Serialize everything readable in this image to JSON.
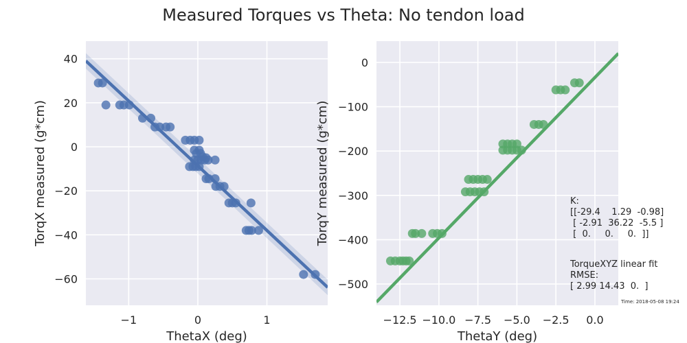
{
  "figure": {
    "title": "Measured Torques vs Theta: No tendon load",
    "annotation": {
      "lines": [
        "K:",
        "[[-29.4    1.29  -0.98]",
        " [ -2.91  36.22  -5.5 ]",
        " [  0.     0.     0.  ]]",
        "",
        "TorqueXYZ linear fit",
        "RMSE:",
        "[ 2.99 14.43  0.  ]"
      ]
    },
    "timestamp": "Time: 2018-05-08 19:24"
  },
  "chart_data": [
    {
      "type": "scatter",
      "xlabel": "ThetaX (deg)",
      "ylabel": "TorqX measured (g*cm)",
      "xlim": [
        -1.62,
        1.88
      ],
      "ylim": [
        -72,
        48
      ],
      "xticks": [
        -1,
        0,
        1
      ],
      "xtick_labels": [
        "−1",
        "0",
        "1"
      ],
      "yticks": [
        40,
        20,
        0,
        -20,
        -40,
        -60
      ],
      "ytick_labels": [
        "40",
        "20",
        "0",
        "−20",
        "−40",
        "−60"
      ],
      "color": "#4c72b0",
      "fit": {
        "slope": -29.4,
        "intercept": -8.6,
        "ci_halfwidth": 2.2
      },
      "points": [
        [
          -1.44,
          29
        ],
        [
          -1.38,
          29
        ],
        [
          -1.33,
          19
        ],
        [
          -1.13,
          19
        ],
        [
          -1.07,
          19
        ],
        [
          -0.99,
          19
        ],
        [
          -0.8,
          13
        ],
        [
          -0.68,
          13
        ],
        [
          -0.62,
          9
        ],
        [
          -0.55,
          9
        ],
        [
          -0.46,
          9
        ],
        [
          -0.4,
          9
        ],
        [
          -0.18,
          3
        ],
        [
          -0.11,
          3
        ],
        [
          -0.05,
          3
        ],
        [
          0.02,
          3
        ],
        [
          -0.05,
          -1.5
        ],
        [
          -0.02,
          -3
        ],
        [
          0.02,
          -1.5
        ],
        [
          0.04,
          -3
        ],
        [
          0.07,
          -4.5
        ],
        [
          0.12,
          -5
        ],
        [
          -0.05,
          -6
        ],
        [
          0.0,
          -6
        ],
        [
          0.05,
          -6
        ],
        [
          0.1,
          -6
        ],
        [
          0.15,
          -6
        ],
        [
          0.25,
          -6
        ],
        [
          -0.12,
          -9
        ],
        [
          -0.07,
          -9
        ],
        [
          -0.03,
          -9
        ],
        [
          0.02,
          -9
        ],
        [
          0.12,
          -14.5
        ],
        [
          0.16,
          -14.5
        ],
        [
          0.25,
          -14.5
        ],
        [
          0.26,
          -18
        ],
        [
          0.32,
          -18
        ],
        [
          0.38,
          -18
        ],
        [
          0.45,
          -25.5
        ],
        [
          0.5,
          -25.5
        ],
        [
          0.55,
          -25.5
        ],
        [
          0.77,
          -25.5
        ],
        [
          0.7,
          -38
        ],
        [
          0.74,
          -38
        ],
        [
          0.78,
          -38
        ],
        [
          0.88,
          -38
        ],
        [
          1.53,
          -58
        ],
        [
          1.7,
          -58
        ]
      ]
    },
    {
      "type": "scatter",
      "xlabel": "ThetaY (deg)",
      "ylabel": "TorqY measured (g*cm)",
      "xlim": [
        -14,
        1.5
      ],
      "ylim": [
        -548,
        48
      ],
      "xticks": [
        -12.5,
        -10,
        -7.5,
        -5,
        -2.5,
        0
      ],
      "xtick_labels": [
        "−12.5",
        "−10.0",
        "−7.5",
        "−5.0",
        "−2.5",
        "0.0"
      ],
      "yticks": [
        0,
        -100,
        -200,
        -300,
        -400,
        -500
      ],
      "ytick_labels": [
        "0",
        "−100",
        "−200",
        "−300",
        "−400",
        "−500"
      ],
      "color": "#55a868",
      "fit": {
        "slope": 36.2,
        "intercept": -34,
        "ci_halfwidth": 3
      },
      "points": [
        [
          -13.1,
          -448
        ],
        [
          -12.8,
          -448
        ],
        [
          -12.5,
          -448
        ],
        [
          -12.3,
          -448
        ],
        [
          -12.1,
          -448
        ],
        [
          -11.9,
          -448
        ],
        [
          -11.7,
          -386
        ],
        [
          -11.5,
          -386
        ],
        [
          -11.1,
          -386
        ],
        [
          -10.4,
          -386
        ],
        [
          -10.1,
          -386
        ],
        [
          -9.8,
          -386
        ],
        [
          -8.3,
          -292
        ],
        [
          -8.0,
          -292
        ],
        [
          -7.7,
          -292
        ],
        [
          -7.4,
          -292
        ],
        [
          -7.1,
          -292
        ],
        [
          -8.1,
          -264
        ],
        [
          -7.8,
          -264
        ],
        [
          -7.5,
          -264
        ],
        [
          -7.2,
          -264
        ],
        [
          -6.9,
          -264
        ],
        [
          -5.9,
          -184
        ],
        [
          -5.6,
          -184
        ],
        [
          -5.3,
          -184
        ],
        [
          -5.0,
          -184
        ],
        [
          -5.9,
          -198
        ],
        [
          -5.6,
          -198
        ],
        [
          -5.3,
          -198
        ],
        [
          -5.0,
          -198
        ],
        [
          -4.7,
          -198
        ],
        [
          -3.9,
          -140
        ],
        [
          -3.6,
          -140
        ],
        [
          -3.3,
          -140
        ],
        [
          -2.5,
          -62
        ],
        [
          -2.2,
          -62
        ],
        [
          -1.9,
          -62
        ],
        [
          -1.3,
          -46
        ],
        [
          -1.0,
          -46
        ]
      ]
    }
  ]
}
